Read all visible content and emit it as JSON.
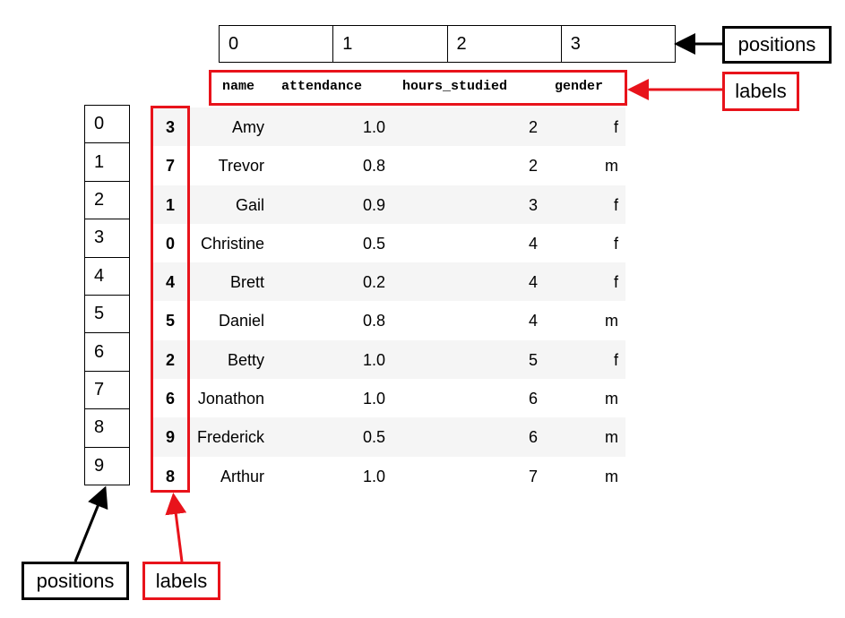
{
  "column_positions": [
    "0",
    "1",
    "2",
    "3"
  ],
  "row_positions": [
    "0",
    "1",
    "2",
    "3",
    "4",
    "5",
    "6",
    "7",
    "8",
    "9"
  ],
  "columns": [
    "name",
    "attendance",
    "hours_studied",
    "gender"
  ],
  "rows": [
    {
      "label": "3",
      "name": "Amy",
      "attendance": "1.0",
      "hours_studied": "2",
      "gender": "f"
    },
    {
      "label": "7",
      "name": "Trevor",
      "attendance": "0.8",
      "hours_studied": "2",
      "gender": "m"
    },
    {
      "label": "1",
      "name": "Gail",
      "attendance": "0.9",
      "hours_studied": "3",
      "gender": "f"
    },
    {
      "label": "0",
      "name": "Christine",
      "attendance": "0.5",
      "hours_studied": "4",
      "gender": "f"
    },
    {
      "label": "4",
      "name": "Brett",
      "attendance": "0.2",
      "hours_studied": "4",
      "gender": "f"
    },
    {
      "label": "5",
      "name": "Daniel",
      "attendance": "0.8",
      "hours_studied": "4",
      "gender": "m"
    },
    {
      "label": "2",
      "name": "Betty",
      "attendance": "1.0",
      "hours_studied": "5",
      "gender": "f"
    },
    {
      "label": "6",
      "name": "Jonathon",
      "attendance": "1.0",
      "hours_studied": "6",
      "gender": "m"
    },
    {
      "label": "9",
      "name": "Frederick",
      "attendance": "0.5",
      "hours_studied": "6",
      "gender": "m"
    },
    {
      "label": "8",
      "name": "Arthur",
      "attendance": "1.0",
      "hours_studied": "7",
      "gender": "m"
    }
  ],
  "callouts": {
    "top_positions": "positions",
    "top_labels": "labels",
    "bottom_positions": "positions",
    "bottom_labels": "labels"
  },
  "colors": {
    "highlight_red": "#e8131b",
    "stripe": "#f5f5f5",
    "black": "#000000"
  }
}
